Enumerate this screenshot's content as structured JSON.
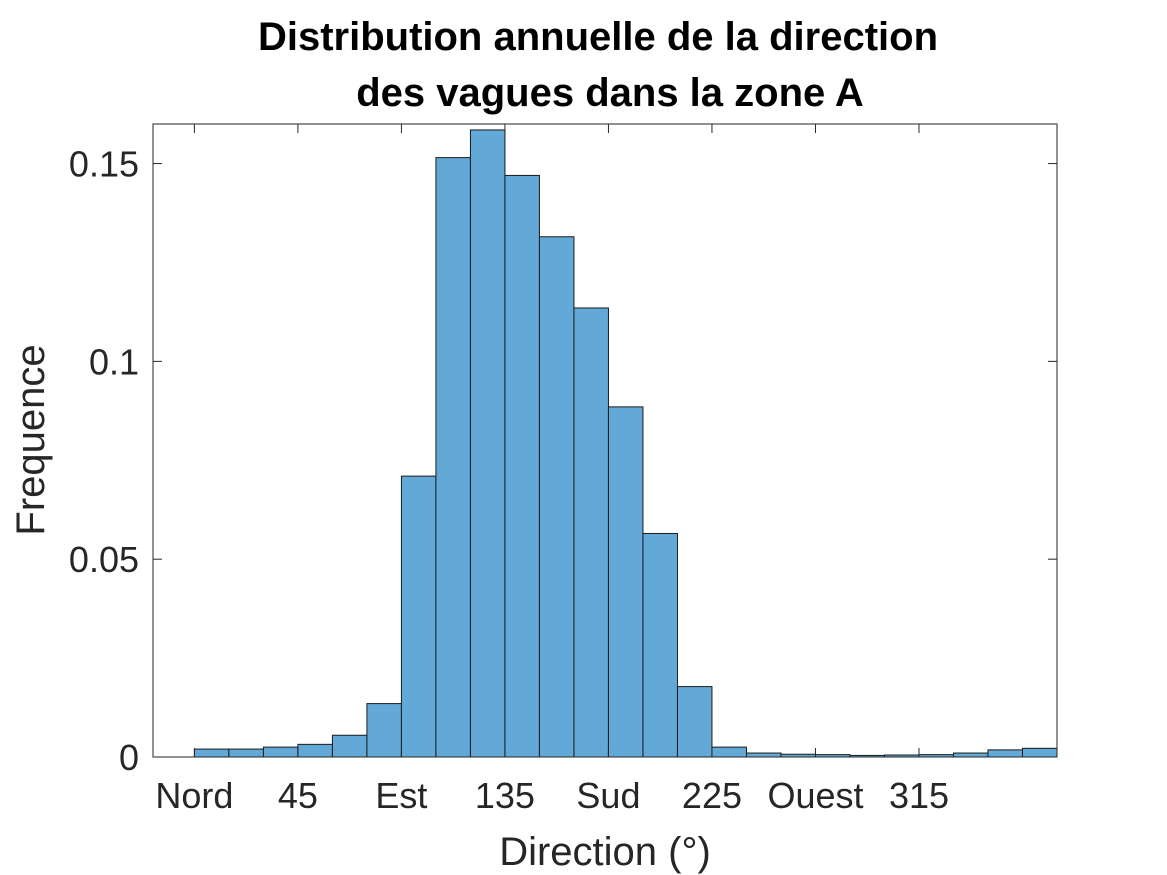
{
  "chart_data": {
    "type": "bar",
    "title_lines": [
      "Distribution annuelle de la direction",
      "des vagues dans la zone A"
    ],
    "xlabel": "Direction (°)",
    "ylabel": "Frequence",
    "bin_width": 15,
    "x_bin_starts": [
      0,
      15,
      30,
      45,
      60,
      75,
      90,
      105,
      120,
      135,
      150,
      165,
      180,
      195,
      210,
      225,
      240,
      255,
      270,
      285,
      300,
      315,
      330,
      345
    ],
    "values": [
      0.002,
      0.002,
      0.0025,
      0.0032,
      0.0055,
      0.0135,
      0.071,
      0.1515,
      0.1585,
      0.147,
      0.1315,
      0.1135,
      0.0885,
      0.0565,
      0.0178,
      0.0025,
      0.001,
      0.0007,
      0.0006,
      0.0004,
      0.0005,
      0.0006,
      0.001,
      0.0018
    ],
    "last_value": 0.0022,
    "xlim": [
      -18,
      375
    ],
    "ylim": [
      0,
      0.16
    ],
    "x_ticks": [
      {
        "value": 0,
        "label": "Nord"
      },
      {
        "value": 45,
        "label": "45"
      },
      {
        "value": 90,
        "label": "Est"
      },
      {
        "value": 135,
        "label": "135"
      },
      {
        "value": 180,
        "label": "Sud"
      },
      {
        "value": 225,
        "label": "225"
      },
      {
        "value": 270,
        "label": "Ouest"
      },
      {
        "value": 315,
        "label": "315"
      }
    ],
    "y_ticks": [
      {
        "value": 0,
        "label": "0"
      },
      {
        "value": 0.05,
        "label": "0.05"
      },
      {
        "value": 0.1,
        "label": "0.1"
      },
      {
        "value": 0.15,
        "label": "0.15"
      }
    ],
    "grid": false,
    "bar_color": "#63a9d7",
    "edge_color": "#1a1a1a"
  }
}
